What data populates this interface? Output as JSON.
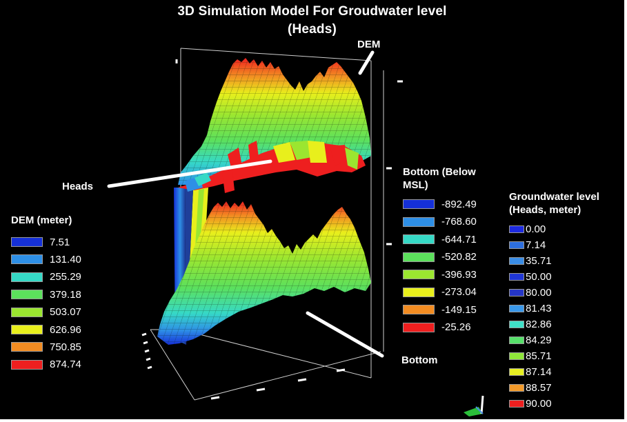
{
  "title_line1": "3D Simulation Model For Groudwater level",
  "title_line2": "(Heads)",
  "annotations": {
    "dem": "DEM",
    "heads": "Heads",
    "bottom": "Bottom"
  },
  "legend_dem": {
    "title": "DEM (meter)",
    "items": [
      {
        "value": "7.51",
        "color": "#1530d8"
      },
      {
        "value": "131.40",
        "color": "#2e8fe6"
      },
      {
        "value": "255.29",
        "color": "#36d9c6"
      },
      {
        "value": "379.18",
        "color": "#5ce05c"
      },
      {
        "value": "503.07",
        "color": "#9be630"
      },
      {
        "value": "626.96",
        "color": "#e8ef1c"
      },
      {
        "value": "750.85",
        "color": "#f28c22"
      },
      {
        "value": "874.74",
        "color": "#ee1f1f"
      }
    ]
  },
  "legend_bottom": {
    "title_line1": "Bottom (Below",
    "title_line2": "MSL)",
    "items": [
      {
        "value": "-892.49",
        "color": "#1530d8"
      },
      {
        "value": "-768.60",
        "color": "#2e8fe6"
      },
      {
        "value": "-644.71",
        "color": "#36d9c6"
      },
      {
        "value": "-520.82",
        "color": "#5ce05c"
      },
      {
        "value": "-396.93",
        "color": "#9be630"
      },
      {
        "value": "-273.04",
        "color": "#e8ef1c"
      },
      {
        "value": "-149.15",
        "color": "#f28c22"
      },
      {
        "value": "-25.26",
        "color": "#ee1f1f"
      }
    ]
  },
  "legend_heads": {
    "title_line1": "Groundwater level",
    "title_line2": "(Heads, meter)",
    "items": [
      {
        "value": "0.00",
        "color": "#1d2ae0"
      },
      {
        "value": "7.14",
        "color": "#2d6fe0"
      },
      {
        "value": "35.71",
        "color": "#3a8de6"
      },
      {
        "value": "50.00",
        "color": "#1f36d6"
      },
      {
        "value": "80.00",
        "color": "#2536c8"
      },
      {
        "value": "81.43",
        "color": "#3a98ea"
      },
      {
        "value": "82.86",
        "color": "#3fe0c8"
      },
      {
        "value": "84.29",
        "color": "#57e06a"
      },
      {
        "value": "85.71",
        "color": "#8fe63a"
      },
      {
        "value": "87.14",
        "color": "#e6ef22"
      },
      {
        "value": "88.57",
        "color": "#f29a2a"
      },
      {
        "value": "90.00",
        "color": "#ee1f1f"
      }
    ]
  },
  "colors": {
    "background": "#000000",
    "text": "#ffffff",
    "frame": "#cfcfcf"
  }
}
